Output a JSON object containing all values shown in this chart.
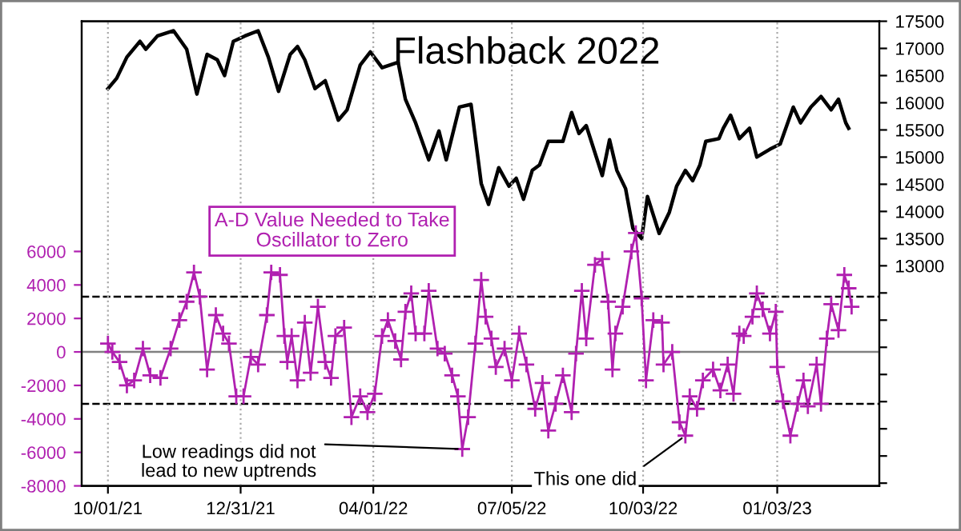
{
  "chart_data": {
    "type": "line",
    "title": "Flashback 2022",
    "xlim": [
      "2021-09-13",
      "2023-03-14"
    ],
    "xticks": [
      {
        "value": "2021-10-01",
        "label": "10/01/21"
      },
      {
        "value": "2021-12-31",
        "label": "12/31/21"
      },
      {
        "value": "2022-04-01",
        "label": "04/01/22"
      },
      {
        "value": "2022-07-05",
        "label": "07/05/22"
      },
      {
        "value": "2022-10-03",
        "label": "10/03/22"
      },
      {
        "value": "2023-01-03",
        "label": "01/03/23"
      }
    ],
    "ylim": [
      -8000,
      19750
    ],
    "yticks": [
      -8000,
      -6000,
      -4000,
      -2000,
      0,
      2000,
      4000,
      6000
    ],
    "y2lim": [
      8950,
      17500
    ],
    "y2ticks": [
      {
        "value": 9000,
        "label": null
      },
      {
        "value": 9500,
        "label": null
      },
      {
        "value": 10000,
        "label": null
      },
      {
        "value": 10500,
        "label": null
      },
      {
        "value": 11000,
        "label": null
      },
      {
        "value": 11500,
        "label": null
      },
      {
        "value": 12000,
        "label": null
      },
      {
        "value": 12500,
        "label": null
      },
      13000,
      13500,
      14000,
      14500,
      15000,
      15500,
      16000,
      16500,
      17000,
      17500
    ],
    "grid": "x",
    "legend": false,
    "ref_lines": [
      {
        "axis": "y",
        "value": 0,
        "color": "#808080",
        "line_style": "solid"
      },
      {
        "axis": "y",
        "value": 3300,
        "color": "#000000",
        "line_style": "dashed"
      },
      {
        "axis": "y",
        "value": -3100,
        "color": "#000000",
        "line_style": "dashed"
      }
    ],
    "annotations": [
      {
        "text": "Low readings did not\nlead to new uptrends",
        "x": "2022-06-01",
        "y": -5800
      },
      {
        "text": "This one did",
        "x": "2022-11-01",
        "y": -5000
      }
    ],
    "series": [
      {
        "color": "#000000",
        "axis": "y2",
        "marker": "none",
        "x": [
          "2021-10-01",
          "2021-10-07",
          "2021-10-14",
          "2021-10-23",
          "2021-10-27",
          "2021-11-04",
          "2021-11-15",
          "2021-11-24",
          "2021-12-01",
          "2021-12-08",
          "2021-12-15",
          "2021-12-20",
          "2021-12-26",
          "2022-01-03",
          "2022-01-12",
          "2022-01-19",
          "2022-01-26",
          "2022-02-03",
          "2022-02-08",
          "2022-02-13",
          "2022-02-20",
          "2022-02-27",
          "2022-03-08",
          "2022-03-14",
          "2022-03-23",
          "2022-03-30",
          "2022-04-07",
          "2022-04-18",
          "2022-04-23",
          "2022-04-30",
          "2022-05-09",
          "2022-05-16",
          "2022-05-21",
          "2022-05-30",
          "2022-06-07",
          "2022-06-14",
          "2022-06-19",
          "2022-06-26",
          "2022-07-03",
          "2022-07-08",
          "2022-07-13",
          "2022-07-19",
          "2022-07-24",
          "2022-07-30",
          "2022-08-09",
          "2022-08-15",
          "2022-08-20",
          "2022-08-25",
          "2022-09-05",
          "2022-09-10",
          "2022-09-15",
          "2022-09-21",
          "2022-09-26",
          "2022-10-02",
          "2022-10-06",
          "2022-10-14",
          "2022-10-21",
          "2022-10-26",
          "2022-11-01",
          "2022-11-06",
          "2022-11-11",
          "2022-11-15",
          "2022-11-24",
          "2022-11-27",
          "2022-12-02",
          "2022-12-08",
          "2022-12-15",
          "2022-12-20",
          "2022-12-29",
          "2023-01-05",
          "2023-01-14",
          "2023-01-19",
          "2023-01-26",
          "2023-02-02",
          "2023-02-09",
          "2023-02-14",
          "2023-02-19",
          "2023-02-21"
        ],
        "values": [
          16260,
          16450,
          16840,
          17130,
          16985,
          17230,
          17325,
          16985,
          16160,
          16890,
          16790,
          16500,
          17130,
          17230,
          17325,
          16840,
          16210,
          16890,
          17035,
          16790,
          16260,
          16405,
          15680,
          15870,
          16695,
          16935,
          16645,
          16745,
          16065,
          15630,
          14950,
          15480,
          14950,
          15920,
          15970,
          14515,
          14130,
          14805,
          14465,
          14610,
          14225,
          14755,
          14855,
          15290,
          15290,
          15820,
          15435,
          15580,
          14660,
          15320,
          14755,
          14420,
          13690,
          13500,
          14275,
          13595,
          13985,
          14465,
          14755,
          14565,
          14855,
          15290,
          15340,
          15530,
          15770,
          15340,
          15530,
          15000,
          15145,
          15240,
          15920,
          15630,
          15920,
          16115,
          15870,
          16065,
          15630,
          15530
        ]
      },
      {
        "name": "A-D Value Needed to Take\nOscillator to Zero",
        "color": "#b020b0",
        "marker": "cross",
        "x": [
          "2021-10-01",
          "2021-10-04",
          "2021-10-09",
          "2021-10-14",
          "2021-10-19",
          "2021-10-25",
          "2021-10-30",
          "2021-11-06",
          "2021-11-13",
          "2021-11-19",
          "2021-11-24",
          "2021-11-29",
          "2021-12-03",
          "2021-12-08",
          "2021-12-14",
          "2021-12-19",
          "2021-12-23",
          "2021-12-28",
          "2022-01-02",
          "2022-01-07",
          "2022-01-12",
          "2022-01-18",
          "2022-01-21",
          "2022-01-27",
          "2022-01-30",
          "2022-02-01",
          "2022-02-04",
          "2022-02-08",
          "2022-02-13",
          "2022-02-17",
          "2022-02-22",
          "2022-02-27",
          "2022-03-03",
          "2022-03-06",
          "2022-03-12",
          "2022-03-17",
          "2022-03-23",
          "2022-03-28",
          "2022-04-02",
          "2022-04-07",
          "2022-04-11",
          "2022-04-16",
          "2022-04-20",
          "2022-04-23",
          "2022-04-27",
          "2022-04-30",
          "2022-05-06",
          "2022-05-09",
          "2022-05-15",
          "2022-05-20",
          "2022-05-25",
          "2022-05-29",
          "2022-06-01",
          "2022-06-05",
          "2022-06-10",
          "2022-06-14",
          "2022-06-17",
          "2022-06-21",
          "2022-06-24",
          "2022-06-30",
          "2022-07-05",
          "2022-07-10",
          "2022-07-15",
          "2022-07-21",
          "2022-07-26",
          "2022-07-30",
          "2022-08-04",
          "2022-08-09",
          "2022-08-15",
          "2022-08-18",
          "2022-08-22",
          "2022-08-25",
          "2022-08-31",
          "2022-09-05",
          "2022-09-09",
          "2022-09-12",
          "2022-09-14",
          "2022-09-19",
          "2022-09-25",
          "2022-09-28",
          "2022-10-02",
          "2022-10-05",
          "2022-10-10",
          "2022-10-16",
          "2022-10-17",
          "2022-10-23",
          "2022-10-28",
          "2022-11-01",
          "2022-11-04",
          "2022-11-09",
          "2022-11-13",
          "2022-11-20",
          "2022-11-25",
          "2022-11-30",
          "2022-12-04",
          "2022-12-08",
          "2022-12-11",
          "2022-12-17",
          "2022-12-20",
          "2022-12-24",
          "2022-12-29",
          "2023-01-02",
          "2023-01-03",
          "2023-01-07",
          "2023-01-12",
          "2023-01-17",
          "2023-01-21",
          "2023-01-24",
          "2023-01-30",
          "2023-02-02",
          "2023-02-06",
          "2023-02-09",
          "2023-02-14",
          "2023-02-18",
          "2023-02-21",
          "2023-02-23"
        ],
        "values": [
          500,
          0,
          -600,
          -2000,
          -1700,
          200,
          -1400,
          -1550,
          200,
          1900,
          3000,
          4750,
          3300,
          -1050,
          2200,
          1100,
          500,
          -2650,
          -2650,
          -300,
          -750,
          2200,
          4750,
          4600,
          950,
          -600,
          950,
          -1700,
          1750,
          -1250,
          2700,
          -600,
          -1550,
          950,
          1450,
          -3900,
          -2650,
          -3600,
          -2500,
          950,
          1900,
          650,
          -450,
          2400,
          3500,
          1100,
          1100,
          3650,
          200,
          -100,
          -1400,
          -2650,
          -5800,
          -3900,
          500,
          4300,
          2100,
          800,
          -900,
          200,
          -1700,
          1100,
          -750,
          -3400,
          -1850,
          -4700,
          -3100,
          -1400,
          -3600,
          -100,
          3650,
          800,
          5200,
          5550,
          3000,
          -1050,
          1100,
          2700,
          6000,
          7100,
          3200,
          -1700,
          1900,
          1750,
          -750,
          0,
          -4200,
          -5000,
          -2650,
          -3400,
          -1700,
          -1050,
          -2300,
          -750,
          -2500,
          1100,
          950,
          2100,
          3500,
          2550,
          1100,
          2400,
          -900,
          -2950,
          -5000,
          -3100,
          -1700,
          -3250,
          -750,
          -3100,
          800,
          2850,
          1300,
          4600,
          3800,
          2700
        ]
      }
    ]
  }
}
